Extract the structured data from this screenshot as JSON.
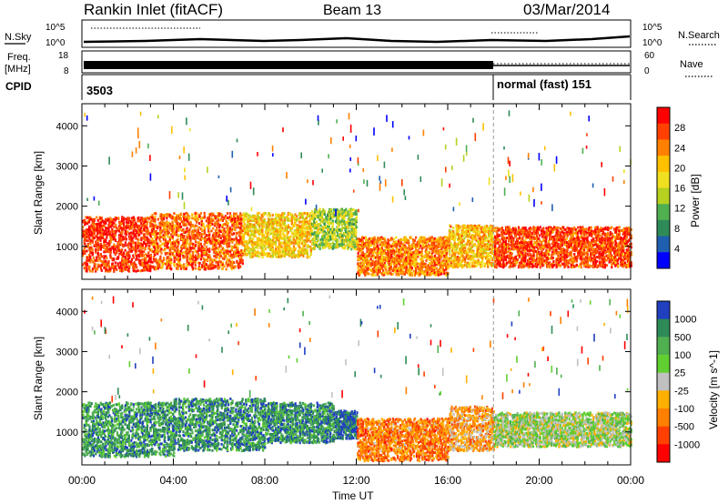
{
  "header": {
    "station": "Rankin Inlet (fitACF)",
    "beam": "Beam 13",
    "date": "03/Mar/2014"
  },
  "noise_panel": {
    "left_label": "N.Sky",
    "right_label": "N.Search",
    "left_ticks": [
      "10^5",
      "10^0"
    ],
    "right_ticks": [
      "10^5",
      "10^0"
    ]
  },
  "freq_panel": {
    "left_label_1": "Freq.",
    "left_label_2": "[MHz]",
    "right_label": "Nave",
    "left_ticks": [
      "18",
      "8"
    ],
    "right_ticks": [
      "60",
      "0"
    ]
  },
  "cpid_panel": {
    "label": "CPID",
    "segments": [
      {
        "text": "3503",
        "start_hour": 0
      },
      {
        "text": "normal (fast) 151",
        "start_hour": 18
      }
    ]
  },
  "time_axis": {
    "label": "Time UT",
    "ticks": [
      "00:00",
      "04:00",
      "08:00",
      "12:00",
      "16:00",
      "20:00",
      "00:00"
    ]
  },
  "chart_data": [
    {
      "type": "heatmap",
      "name": "power",
      "ylabel": "Slant Range [km]",
      "xlabel": "Time UT",
      "xlim_hours": [
        0,
        24
      ],
      "ylim_km": [
        180,
        4550
      ],
      "yticks": [
        1000,
        2000,
        3000,
        4000
      ],
      "mode_change_hour": 18,
      "colorbar": {
        "label": "Power [dB]",
        "ticks": [
          "28",
          "24",
          "20",
          "16",
          "12",
          "8",
          "4"
        ],
        "colors": [
          "#ff0000",
          "#ff4000",
          "#ff8000",
          "#ffc000",
          "#f0e020",
          "#b8d020",
          "#50b050",
          "#2e8b57",
          "#1f5fb0",
          "#0000ff"
        ]
      },
      "blocks": [
        {
          "t0": 0.0,
          "t1": 3.0,
          "r0": 350,
          "r1": 1700,
          "level": 0.88
        },
        {
          "t0": 3.0,
          "t1": 7.0,
          "r0": 400,
          "r1": 1800,
          "level": 0.8
        },
        {
          "t0": 7.0,
          "t1": 10.0,
          "r0": 700,
          "r1": 1800,
          "level": 0.6
        },
        {
          "t0": 10.0,
          "t1": 12.0,
          "r0": 900,
          "r1": 1900,
          "level": 0.45
        },
        {
          "t0": 12.0,
          "t1": 16.0,
          "r0": 250,
          "r1": 1200,
          "level": 0.75
        },
        {
          "t0": 16.0,
          "t1": 18.0,
          "r0": 450,
          "r1": 1500,
          "level": 0.65
        },
        {
          "t0": 18.0,
          "t1": 24.0,
          "r0": 450,
          "r1": 1450,
          "level": 0.85
        }
      ]
    },
    {
      "type": "heatmap",
      "name": "velocity",
      "ylabel": "Slant Range [km]",
      "xlabel": "Time UT",
      "xlim_hours": [
        0,
        24
      ],
      "ylim_km": [
        180,
        4550
      ],
      "yticks": [
        1000,
        2000,
        3000,
        4000
      ],
      "mode_change_hour": 18,
      "colorbar": {
        "label": "Velocity [m s^-1]",
        "ticks": [
          "1000",
          "500",
          "100",
          "25",
          "-25",
          "-100",
          "-500",
          "-1000"
        ],
        "colors": [
          "#2040c0",
          "#2e8b57",
          "#50b050",
          "#60d030",
          "#c0c0c0",
          "#ffb000",
          "#ff8000",
          "#ff4000",
          "#ff0000"
        ]
      },
      "blocks": [
        {
          "t0": 0.0,
          "t1": 4.0,
          "r0": 350,
          "r1": 1700,
          "level": 0.22
        },
        {
          "t0": 4.0,
          "t1": 8.0,
          "r0": 500,
          "r1": 1800,
          "level": 0.2
        },
        {
          "t0": 8.0,
          "t1": 11.0,
          "r0": 700,
          "r1": 1700,
          "level": 0.2
        },
        {
          "t0": 11.0,
          "t1": 12.0,
          "r0": 800,
          "r1": 1500,
          "level": 0.1
        },
        {
          "t0": 12.0,
          "t1": 16.0,
          "r0": 250,
          "r1": 1300,
          "level": 0.72
        },
        {
          "t0": 16.0,
          "t1": 18.0,
          "r0": 500,
          "r1": 1600,
          "level": 0.65
        },
        {
          "t0": 18.0,
          "t1": 24.0,
          "r0": 600,
          "r1": 1450,
          "level": 0.45
        }
      ]
    }
  ]
}
